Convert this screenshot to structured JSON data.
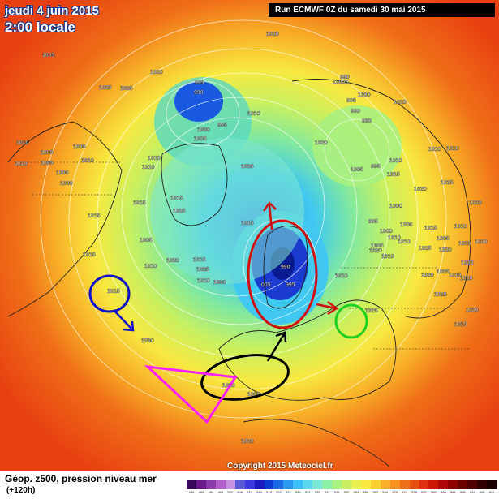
{
  "header": {
    "date": "jeudi 4 juin 2015",
    "time": "2:00 locale",
    "run": "Run ECMWF 0Z du samedi 30 mai 2015"
  },
  "footer": {
    "title": "Géop. z500, pression niveau mer",
    "subtitle": "(+120h)",
    "copyright": "Copyright 2015 Meteociel.fr"
  },
  "map": {
    "projection": "polar stereographic, north hemisphere",
    "pressure_labels": [
      {
        "text": "1020"
      },
      {
        "text": "1020"
      },
      {
        "text": "1020"
      },
      {
        "text": "1025"
      },
      {
        "text": "1010"
      },
      {
        "text": "1005"
      },
      {
        "text": "1005"
      },
      {
        "text": "1005"
      },
      {
        "text": "1005"
      },
      {
        "text": "1010"
      },
      {
        "text": "1010"
      },
      {
        "text": "1000"
      },
      {
        "text": "1005"
      },
      {
        "text": "1010"
      },
      {
        "text": "1010"
      },
      {
        "text": "995"
      },
      {
        "text": "990"
      },
      {
        "text": "995"
      },
      {
        "text": "1000"
      },
      {
        "text": "1005"
      },
      {
        "text": "1010"
      },
      {
        "text": "990"
      },
      {
        "text": "1000"
      },
      {
        "text": "995"
      },
      {
        "text": "990"
      },
      {
        "text": "10005"
      },
      {
        "text": "990"
      },
      {
        "text": "995"
      },
      {
        "text": "1020"
      },
      {
        "text": "1010"
      },
      {
        "text": "1010"
      },
      {
        "text": "1015"
      },
      {
        "text": "1005"
      },
      {
        "text": "1025"
      },
      {
        "text": "1015"
      },
      {
        "text": "1010"
      },
      {
        "text": "1020"
      },
      {
        "text": "1025"
      },
      {
        "text": "1030"
      },
      {
        "text": "1015"
      },
      {
        "text": "1010"
      },
      {
        "text": "1005"
      },
      {
        "text": "1015"
      },
      {
        "text": "990"
      },
      {
        "text": "005"
      },
      {
        "text": "995"
      },
      {
        "text": "1010"
      },
      {
        "text": "1000"
      },
      {
        "text": "995"
      },
      {
        "text": "1000"
      },
      {
        "text": "1005"
      },
      {
        "text": "1020"
      },
      {
        "text": "1025"
      },
      {
        "text": "1015"
      },
      {
        "text": "1005"
      },
      {
        "text": "1020"
      },
      {
        "text": "1015"
      },
      {
        "text": "1025"
      },
      {
        "text": "1020"
      },
      {
        "text": "1020"
      },
      {
        "text": "1015"
      },
      {
        "text": "1015"
      },
      {
        "text": "1030"
      },
      {
        "text": "1020"
      },
      {
        "text": "1025"
      },
      {
        "text": "1025"
      },
      {
        "text": "1020"
      },
      {
        "text": "1020"
      },
      {
        "text": "1005"
      },
      {
        "text": "1010"
      },
      {
        "text": "1010"
      },
      {
        "text": "1025"
      },
      {
        "text": "1015"
      },
      {
        "text": "1020"
      },
      {
        "text": "1010"
      },
      {
        "text": "1010"
      },
      {
        "text": "1025"
      },
      {
        "text": "1025"
      },
      {
        "text": "1020"
      },
      {
        "text": "1020"
      },
      {
        "text": "1025"
      },
      {
        "text": "1020"
      },
      {
        "text": "1015"
      },
      {
        "text": "1015"
      },
      {
        "text": "1000"
      },
      {
        "text": "1010"
      }
    ]
  },
  "annotations": [
    {
      "shape": "ellipse",
      "color": "#d01010"
    },
    {
      "shape": "ellipse",
      "color": "#1010c8"
    },
    {
      "shape": "ellipse",
      "color": "#20d020"
    },
    {
      "shape": "ellipse",
      "color": "#000000"
    },
    {
      "shape": "triangle",
      "color": "#ff20ff"
    },
    {
      "shape": "arrow",
      "color": "#d01010"
    },
    {
      "shape": "arrow",
      "color": "#000000"
    },
    {
      "shape": "arrow",
      "color": "#1010c8"
    }
  ],
  "scale": {
    "colors": [
      "#3a0a5a",
      "#6a1a8a",
      "#8a3aa8",
      "#b060c8",
      "#c890e0",
      "#5a5ad8",
      "#3a3ae0",
      "#1a1ac0",
      "#0a3ad0",
      "#1a6ae8",
      "#2a9af0",
      "#3ac0f8",
      "#5ad8f0",
      "#7ae8d8",
      "#8af0a8",
      "#a8f080",
      "#c8f060",
      "#e8f050",
      "#f8e840",
      "#f8d030",
      "#f8b028",
      "#f89020",
      "#f07018",
      "#e85010",
      "#e03010",
      "#d01808",
      "#b00808",
      "#900000",
      "#700000",
      "#500000",
      "#300000",
      "#180000"
    ],
    "labels": [
      "486",
      "490",
      "494",
      "498",
      "502",
      "506",
      "510",
      "514",
      "518",
      "522",
      "526",
      "530",
      "534",
      "538",
      "542",
      "546",
      "550",
      "554",
      "558",
      "562",
      "566",
      "570",
      "574",
      "578",
      "582",
      "586",
      "590",
      "594",
      "598",
      "602",
      "606",
      "610"
    ]
  }
}
